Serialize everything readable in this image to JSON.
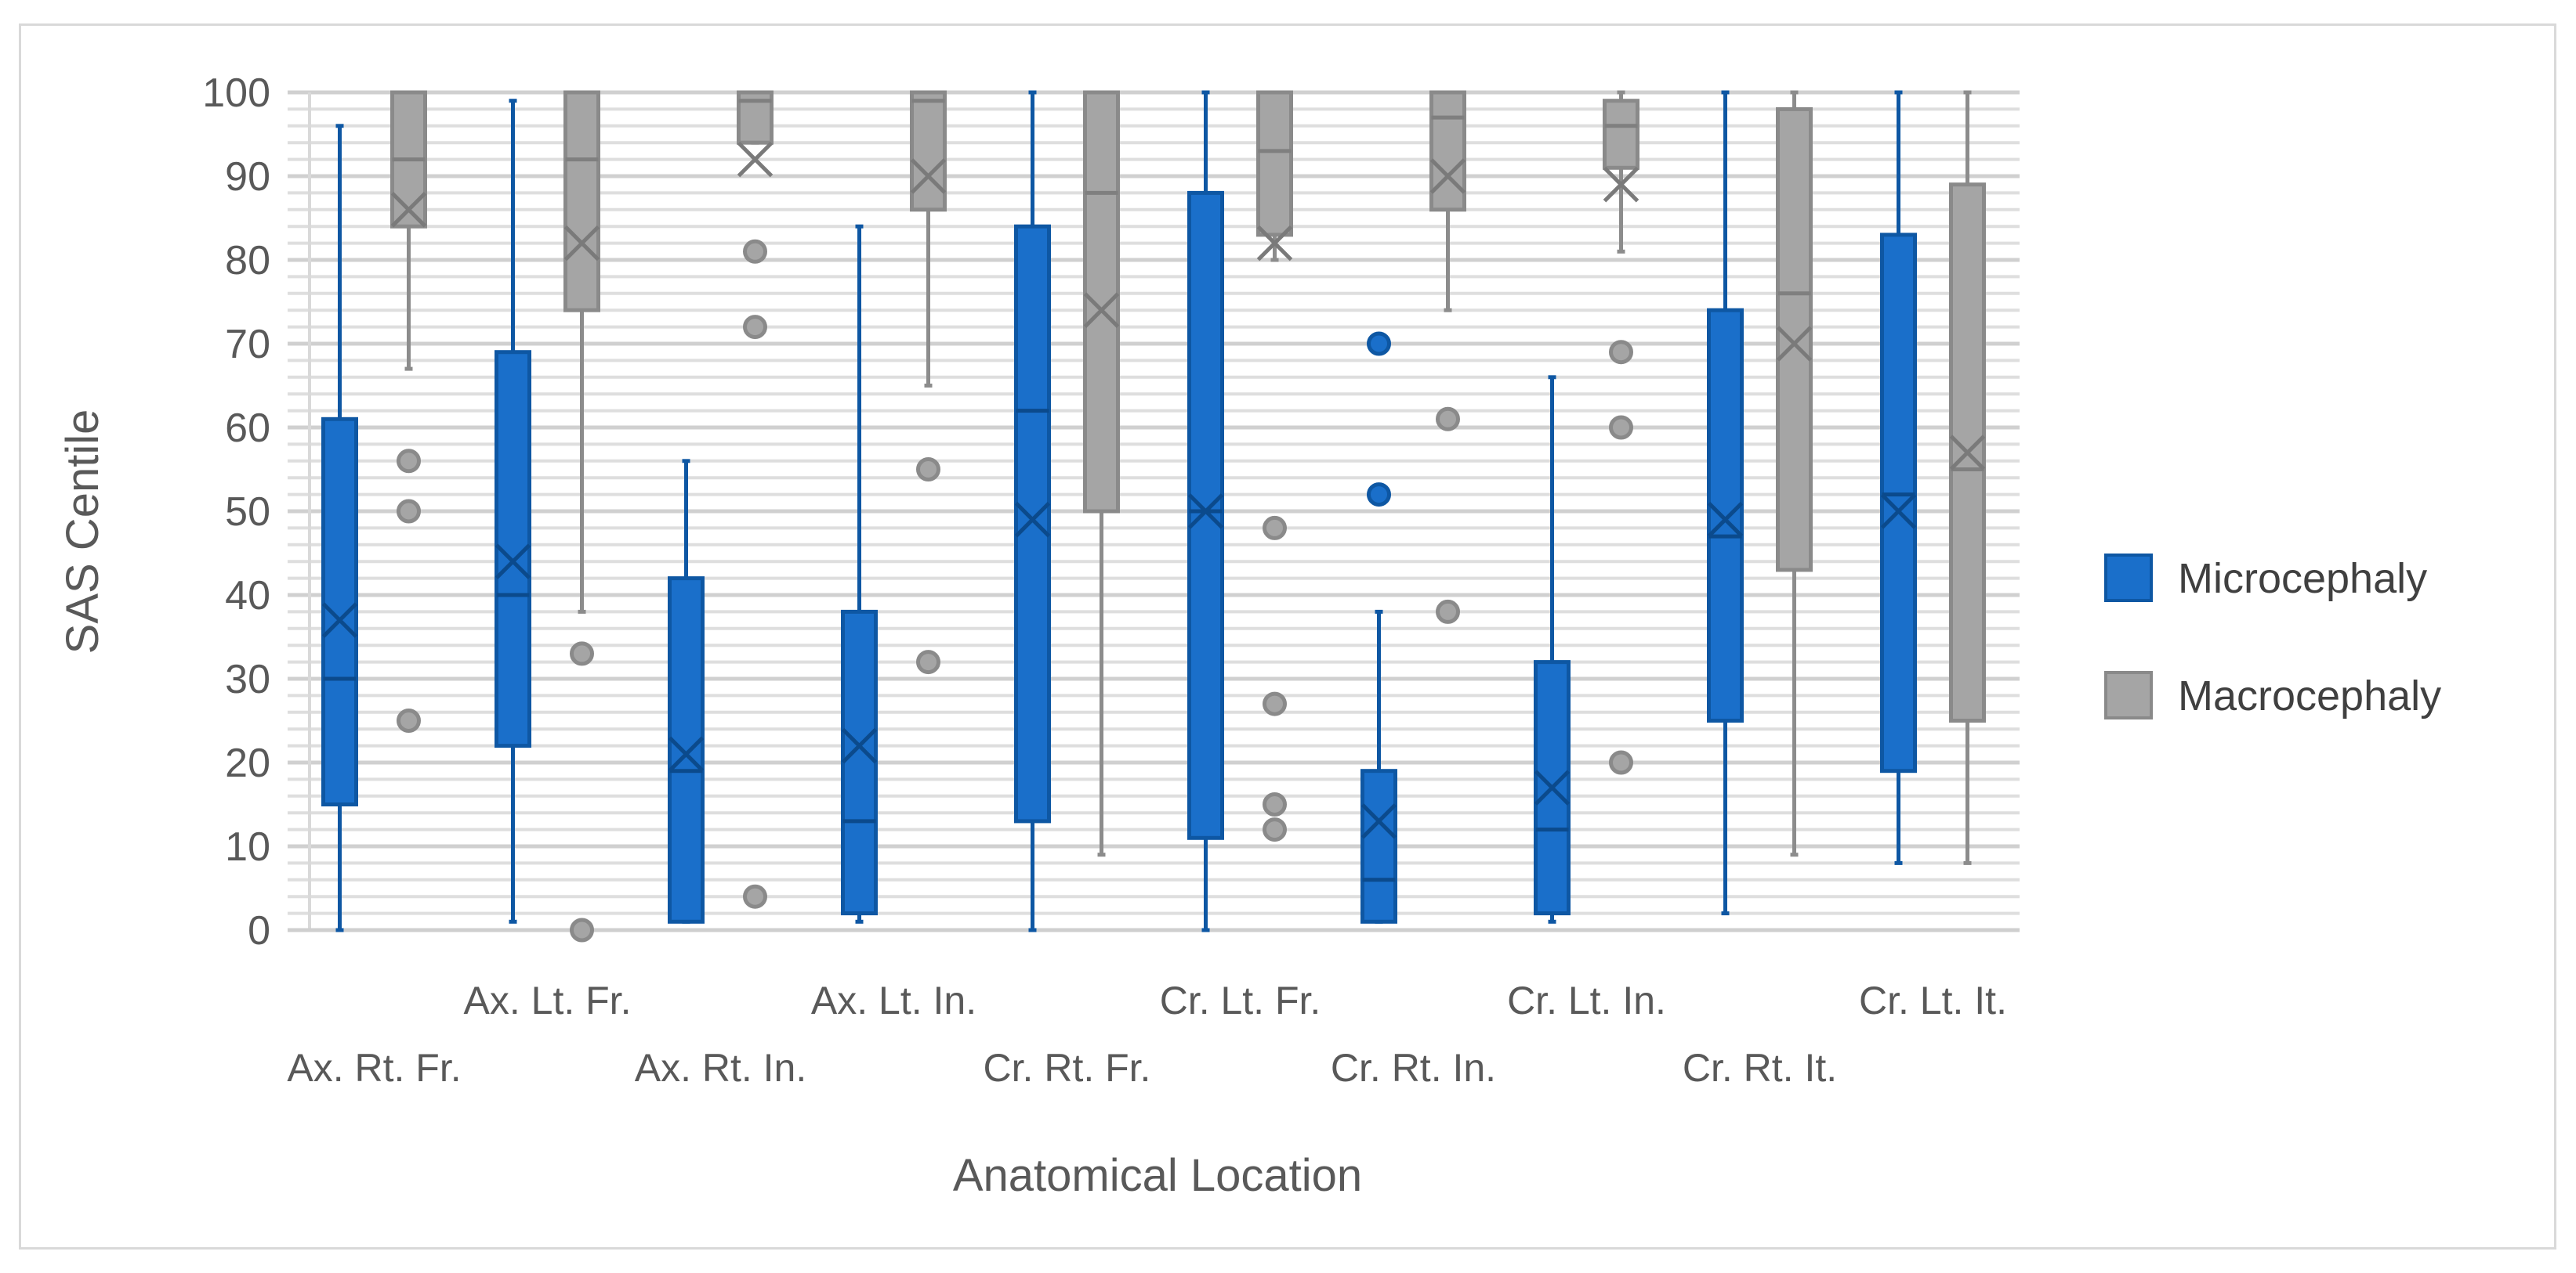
{
  "chart_data": {
    "type": "box",
    "title": "",
    "xlabel": "Anatomical Location",
    "ylabel": "SAS Centile",
    "ylim": [
      0,
      100
    ],
    "yticks": [
      0,
      10,
      20,
      30,
      40,
      50,
      60,
      70,
      80,
      90,
      100
    ],
    "minor_grid_step": 2,
    "legend_position": "right",
    "categories": [
      "Ax. Rt. Fr.",
      "Ax. Lt. Fr.",
      "Ax. Rt. In.",
      "Ax. Lt. In.",
      "Cr. Rt. Fr.",
      "Cr. Lt. Fr.",
      "Cr. Rt. In.",
      "Cr. Lt. In.",
      "Cr. Rt. It.",
      "Cr. Lt. It."
    ],
    "series": [
      {
        "name": "Microcephaly",
        "color": "#1a6fca",
        "edge": "#0e57a3",
        "boxes": [
          {
            "min": 0,
            "q1": 15,
            "median": 30,
            "q3": 61,
            "max": 96,
            "mean": 37,
            "outliers": []
          },
          {
            "min": 1,
            "q1": 22,
            "median": 40,
            "q3": 69,
            "max": 99,
            "mean": 44,
            "outliers": []
          },
          {
            "min": 1,
            "q1": 1,
            "median": 19,
            "q3": 42,
            "max": 56,
            "mean": 21,
            "outliers": []
          },
          {
            "min": 1,
            "q1": 2,
            "median": 13,
            "q3": 38,
            "max": 84,
            "mean": 22,
            "outliers": []
          },
          {
            "min": 0,
            "q1": 13,
            "median": 62,
            "q3": 84,
            "max": 100,
            "mean": 49,
            "outliers": []
          },
          {
            "min": 0,
            "q1": 11,
            "median": 50,
            "q3": 88,
            "max": 100,
            "mean": 50,
            "outliers": []
          },
          {
            "min": 1,
            "q1": 1,
            "median": 6,
            "q3": 19,
            "max": 38,
            "mean": 13,
            "outliers": [
              52,
              70
            ]
          },
          {
            "min": 1,
            "q1": 2,
            "median": 12,
            "q3": 32,
            "max": 66,
            "mean": 17,
            "outliers": []
          },
          {
            "min": 2,
            "q1": 25,
            "median": 47,
            "q3": 74,
            "max": 100,
            "mean": 49,
            "outliers": []
          },
          {
            "min": 8,
            "q1": 19,
            "median": 52,
            "q3": 83,
            "max": 100,
            "mean": 50,
            "outliers": []
          }
        ]
      },
      {
        "name": "Macrocephaly",
        "color": "#a5a5a5",
        "edge": "#8a8a8a",
        "boxes": [
          {
            "min": 67,
            "q1": 84,
            "median": 92,
            "q3": 100,
            "max": 100,
            "mean": 86,
            "outliers": [
              25,
              50,
              56
            ]
          },
          {
            "min": 38,
            "q1": 74,
            "median": 92,
            "q3": 100,
            "max": 100,
            "mean": 82,
            "outliers": [
              0,
              33
            ]
          },
          {
            "min": 94,
            "q1": 94,
            "median": 99,
            "q3": 100,
            "max": 100,
            "mean": 92,
            "outliers": [
              4,
              72,
              81
            ]
          },
          {
            "min": 65,
            "q1": 86,
            "median": 99,
            "q3": 100,
            "max": 100,
            "mean": 90,
            "outliers": [
              32,
              55
            ]
          },
          {
            "min": 9,
            "q1": 50,
            "median": 88,
            "q3": 100,
            "max": 100,
            "mean": 74,
            "outliers": []
          },
          {
            "min": 80,
            "q1": 83,
            "median": 93,
            "q3": 100,
            "max": 100,
            "mean": 82,
            "outliers": [
              12,
              15,
              27,
              48
            ]
          },
          {
            "min": 74,
            "q1": 86,
            "median": 97,
            "q3": 100,
            "max": 100,
            "mean": 90,
            "outliers": [
              38,
              61
            ]
          },
          {
            "min": 81,
            "q1": 91,
            "median": 96,
            "q3": 99,
            "max": 100,
            "mean": 89,
            "outliers": [
              20,
              60,
              69
            ]
          },
          {
            "min": 9,
            "q1": 43,
            "median": 76,
            "q3": 98,
            "max": 100,
            "mean": 70,
            "outliers": []
          },
          {
            "min": 8,
            "q1": 25,
            "median": 55,
            "q3": 89,
            "max": 100,
            "mean": 57,
            "outliers": []
          }
        ]
      }
    ]
  }
}
